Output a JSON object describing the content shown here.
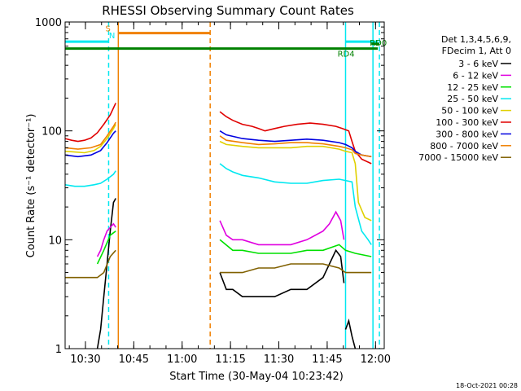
{
  "chart_data": {
    "type": "line",
    "title": "RHESSI Observing Summary Count Rates",
    "xlabel": "Start Time (30-May-04 10:23:42)",
    "ylabel": "Count Rate (s⁻¹ detector⁻¹)",
    "footer": "18-Oct-2021 00:28",
    "y_scale": "log",
    "ylim": [
      1,
      1000
    ],
    "y_ticks": [
      {
        "v": 1,
        "label": "1"
      },
      {
        "v": 10,
        "label": "10"
      },
      {
        "v": 100,
        "label": "100"
      },
      {
        "v": 1000,
        "label": "1000"
      }
    ],
    "x_unit": "minutes after 10:23:42",
    "xlim": [
      0,
      99
    ],
    "x_ticks": [
      {
        "v": 6.3,
        "label": "10:30"
      },
      {
        "v": 21.3,
        "label": "10:45"
      },
      {
        "v": 36.3,
        "label": "11:00"
      },
      {
        "v": 51.3,
        "label": "11:15"
      },
      {
        "v": 66.3,
        "label": "11:30"
      },
      {
        "v": 81.3,
        "label": "11:45"
      },
      {
        "v": 96.3,
        "label": "12:00"
      }
    ],
    "legend_header": [
      "Det 1,3,4,5,6,9,",
      "FDecim 1, Att 0"
    ],
    "legend": [
      {
        "label": "3 - 6 keV",
        "color": "#000000"
      },
      {
        "label": "6 - 12 keV",
        "color": "#e000e0"
      },
      {
        "label": "12 - 25 keV",
        "color": "#00e000"
      },
      {
        "label": "25 - 50 keV",
        "color": "#00e8f0"
      },
      {
        "label": "50 - 100 keV",
        "color": "#e0d000"
      },
      {
        "label": "100 - 300 keV",
        "color": "#e00000"
      },
      {
        "label": "300 - 800 keV",
        "color": "#0000e0"
      },
      {
        "label": "800 - 7000 keV",
        "color": "#f08000"
      },
      {
        "label": "7000 - 15000 keV",
        "color": "#806000"
      }
    ],
    "flags": [
      {
        "label": "N",
        "color": "#00e8f0",
        "x_start": 0,
        "x_end": 13.5,
        "y": 660
      },
      {
        "label": "N",
        "color": "#00e8f0",
        "x_start": 87,
        "x_end": 97,
        "y": 660
      },
      {
        "label": "S",
        "color": "#f08000",
        "x_start": 16.5,
        "x_end": 45,
        "y": 790
      },
      {
        "label": "RD4",
        "color": "#008000",
        "x_start": 0,
        "x_end": 97,
        "y": 570
      },
      {
        "label": "RD0",
        "color": "#008000",
        "x_start": 95,
        "x_end": 97.5,
        "y": 630
      }
    ],
    "vlines": [
      {
        "x": 13.5,
        "color": "#00e8f0",
        "style": "dashed"
      },
      {
        "x": 16.5,
        "color": "#f08000",
        "style": "solid"
      },
      {
        "x": 45,
        "color": "#f08000",
        "style": "dashed"
      },
      {
        "x": 87,
        "color": "#00e8f0",
        "style": "solid"
      },
      {
        "x": 95.5,
        "color": "#00e8f0",
        "style": "solid"
      },
      {
        "x": 97.5,
        "color": "#00e8f0",
        "style": "dashed"
      }
    ],
    "series": [
      {
        "name": "3 - 6 keV",
        "color": "#000000",
        "segments": [
          [
            [
              10,
              1
            ],
            [
              11,
              1.5
            ],
            [
              12,
              3
            ],
            [
              13,
              6
            ],
            [
              14,
              12
            ],
            [
              15,
              22
            ],
            [
              15.7,
              24
            ]
          ],
          [
            [
              48,
              5
            ],
            [
              50,
              3.5
            ],
            [
              52,
              3.5
            ],
            [
              55,
              3
            ],
            [
              58,
              3
            ],
            [
              60,
              3
            ],
            [
              65,
              3
            ],
            [
              70,
              3.5
            ],
            [
              75,
              3.5
            ],
            [
              80,
              4.5
            ],
            [
              82,
              6
            ],
            [
              84,
              8
            ],
            [
              85.5,
              7
            ],
            [
              86.5,
              4
            ]
          ],
          [
            [
              87,
              1.5
            ],
            [
              88,
              1.8
            ],
            [
              89,
              1.3
            ],
            [
              90,
              1
            ]
          ]
        ]
      },
      {
        "name": "6 - 12 keV",
        "color": "#e000e0",
        "segments": [
          [
            [
              10,
              7
            ],
            [
              11,
              8
            ],
            [
              12,
              10
            ],
            [
              13,
              12
            ],
            [
              14,
              13
            ],
            [
              15,
              14
            ],
            [
              15.7,
              13
            ]
          ],
          [
            [
              48,
              15
            ],
            [
              50,
              11
            ],
            [
              52,
              10
            ],
            [
              55,
              10
            ],
            [
              60,
              9
            ],
            [
              65,
              9
            ],
            [
              70,
              9
            ],
            [
              75,
              10
            ],
            [
              80,
              12
            ],
            [
              82,
              14
            ],
            [
              84,
              18
            ],
            [
              85.5,
              15
            ],
            [
              86.5,
              10
            ]
          ]
        ]
      },
      {
        "name": "12 - 25 keV",
        "color": "#00e000",
        "segments": [
          [
            [
              10,
              6
            ],
            [
              12,
              8
            ],
            [
              14,
              11
            ],
            [
              15.7,
              12
            ]
          ],
          [
            [
              48,
              10
            ],
            [
              52,
              8
            ],
            [
              55,
              8
            ],
            [
              60,
              7.5
            ],
            [
              65,
              7.5
            ],
            [
              70,
              7.5
            ],
            [
              75,
              8
            ],
            [
              80,
              8
            ],
            [
              85,
              9
            ],
            [
              87,
              8
            ],
            [
              90,
              7.5
            ],
            [
              95,
              7
            ]
          ]
        ]
      },
      {
        "name": "25 - 50 keV",
        "color": "#00e8f0",
        "segments": [
          [
            [
              0,
              32
            ],
            [
              3,
              31
            ],
            [
              6,
              31
            ],
            [
              9,
              32
            ],
            [
              11,
              33
            ],
            [
              13,
              36
            ],
            [
              15,
              40
            ],
            [
              15.7,
              43
            ]
          ],
          [
            [
              48,
              50
            ],
            [
              50,
              45
            ],
            [
              52,
              42
            ],
            [
              55,
              39
            ],
            [
              60,
              37
            ],
            [
              65,
              34
            ],
            [
              70,
              33
            ],
            [
              75,
              33
            ],
            [
              80,
              35
            ],
            [
              85,
              36
            ],
            [
              87,
              35
            ],
            [
              89,
              34
            ],
            [
              90,
              20
            ],
            [
              92,
              12
            ],
            [
              94,
              10
            ],
            [
              95,
              9
            ]
          ]
        ]
      },
      {
        "name": "50 - 100 keV",
        "color": "#e0d000",
        "segments": [
          [
            [
              0,
              65
            ],
            [
              3,
              64
            ],
            [
              6,
              63
            ],
            [
              9,
              66
            ],
            [
              11,
              72
            ],
            [
              13,
              85
            ],
            [
              15,
              105
            ],
            [
              15.7,
              115
            ]
          ],
          [
            [
              48,
              80
            ],
            [
              50,
              75
            ],
            [
              55,
              72
            ],
            [
              60,
              70
            ],
            [
              65,
              70
            ],
            [
              70,
              70
            ],
            [
              75,
              72
            ],
            [
              80,
              72
            ],
            [
              85,
              68
            ],
            [
              87,
              65
            ],
            [
              89,
              63
            ],
            [
              90,
              50
            ],
            [
              91,
              22
            ],
            [
              93,
              16
            ],
            [
              95,
              15
            ]
          ]
        ]
      },
      {
        "name": "100 - 300 keV",
        "color": "#e00000",
        "segments": [
          [
            [
              0,
              85
            ],
            [
              2,
              82
            ],
            [
              4,
              80
            ],
            [
              6,
              82
            ],
            [
              8,
              86
            ],
            [
              10,
              96
            ],
            [
              12,
              115
            ],
            [
              14,
              140
            ],
            [
              15.7,
              180
            ]
          ],
          [
            [
              48,
              150
            ],
            [
              50,
              135
            ],
            [
              52,
              125
            ],
            [
              55,
              115
            ],
            [
              58,
              110
            ],
            [
              60,
              105
            ],
            [
              62,
              100
            ],
            [
              65,
              105
            ],
            [
              68,
              110
            ],
            [
              72,
              115
            ],
            [
              76,
              118
            ],
            [
              80,
              115
            ],
            [
              84,
              110
            ],
            [
              86,
              105
            ],
            [
              88,
              100
            ],
            [
              89,
              80
            ],
            [
              90,
              65
            ],
            [
              92,
              55
            ],
            [
              95,
              50
            ]
          ]
        ]
      },
      {
        "name": "300 - 800 keV",
        "color": "#0000e0",
        "segments": [
          [
            [
              0,
              60
            ],
            [
              4,
              58
            ],
            [
              8,
              60
            ],
            [
              11,
              66
            ],
            [
              13,
              78
            ],
            [
              15,
              95
            ],
            [
              15.7,
              100
            ]
          ],
          [
            [
              48,
              100
            ],
            [
              50,
              92
            ],
            [
              55,
              85
            ],
            [
              60,
              82
            ],
            [
              65,
              80
            ],
            [
              70,
              82
            ],
            [
              75,
              84
            ],
            [
              80,
              82
            ],
            [
              85,
              78
            ],
            [
              87,
              75
            ],
            [
              89,
              70
            ],
            [
              90,
              65
            ],
            [
              92,
              60
            ],
            [
              95,
              58
            ]
          ]
        ]
      },
      {
        "name": "800 - 7000 keV",
        "color": "#f08000",
        "segments": [
          [
            [
              0,
              70
            ],
            [
              4,
              68
            ],
            [
              8,
              70
            ],
            [
              11,
              75
            ],
            [
              13,
              90
            ],
            [
              15,
              110
            ],
            [
              15.7,
              120
            ]
          ],
          [
            [
              48,
              90
            ],
            [
              50,
              82
            ],
            [
              55,
              78
            ],
            [
              60,
              75
            ],
            [
              65,
              76
            ],
            [
              70,
              78
            ],
            [
              75,
              78
            ],
            [
              80,
              76
            ],
            [
              85,
              72
            ],
            [
              87,
              70
            ],
            [
              89,
              67
            ],
            [
              90,
              62
            ],
            [
              92,
              60
            ],
            [
              95,
              58
            ]
          ]
        ]
      },
      {
        "name": "7000 - 15000 keV",
        "color": "#806000",
        "segments": [
          [
            [
              0,
              4.5
            ],
            [
              5,
              4.5
            ],
            [
              10,
              4.5
            ],
            [
              12,
              5
            ],
            [
              14,
              7
            ],
            [
              15.7,
              8
            ]
          ],
          [
            [
              48,
              5
            ],
            [
              50,
              5
            ],
            [
              55,
              5
            ],
            [
              60,
              5.5
            ],
            [
              65,
              5.5
            ],
            [
              70,
              6
            ],
            [
              75,
              6
            ],
            [
              80,
              6
            ],
            [
              85,
              5.5
            ],
            [
              87,
              5
            ],
            [
              90,
              5
            ],
            [
              95,
              5
            ]
          ]
        ]
      }
    ]
  }
}
